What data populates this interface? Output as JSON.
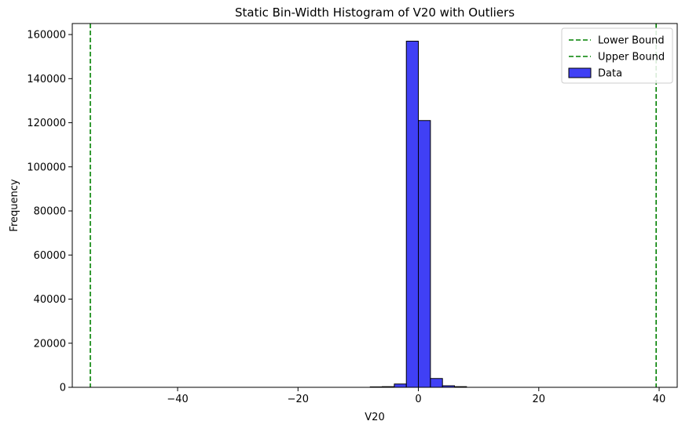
{
  "chart_data": {
    "type": "bar",
    "title": "Static Bin-Width Histogram of V20 with Outliers",
    "xlabel": "V20",
    "ylabel": "Frequency",
    "xlim": [
      -57.5,
      43.0
    ],
    "ylim": [
      0,
      165000
    ],
    "xticks": [
      -40,
      -20,
      0,
      20,
      40
    ],
    "xtick_labels": [
      "−40",
      "−20",
      "0",
      "20",
      "40"
    ],
    "yticks": [
      0,
      20000,
      40000,
      60000,
      80000,
      100000,
      120000,
      140000,
      160000
    ],
    "ytick_labels": [
      "0",
      "20000",
      "40000",
      "60000",
      "80000",
      "100000",
      "120000",
      "140000",
      "160000"
    ],
    "bins": [
      {
        "x0": -8,
        "x1": -6,
        "value": 200
      },
      {
        "x0": -6,
        "x1": -4,
        "value": 300
      },
      {
        "x0": -4,
        "x1": -2,
        "value": 1500
      },
      {
        "x0": -2,
        "x1": 0,
        "value": 157000
      },
      {
        "x0": 0,
        "x1": 2,
        "value": 121000
      },
      {
        "x0": 2,
        "x1": 4,
        "value": 4000
      },
      {
        "x0": 4,
        "x1": 6,
        "value": 700
      },
      {
        "x0": 6,
        "x1": 8,
        "value": 300
      }
    ],
    "bounds": [
      {
        "name": "Lower Bound",
        "value": -54.5
      },
      {
        "name": "Upper Bound",
        "value": 39.5
      }
    ],
    "legend": {
      "position": "top-right",
      "entries": [
        "Lower Bound",
        "Upper Bound",
        "Data"
      ]
    },
    "colors": {
      "bar_fill": "#4040f5",
      "bar_edge": "#000000",
      "bound_line": "#008000",
      "axis": "#000000"
    },
    "grid": false
  }
}
